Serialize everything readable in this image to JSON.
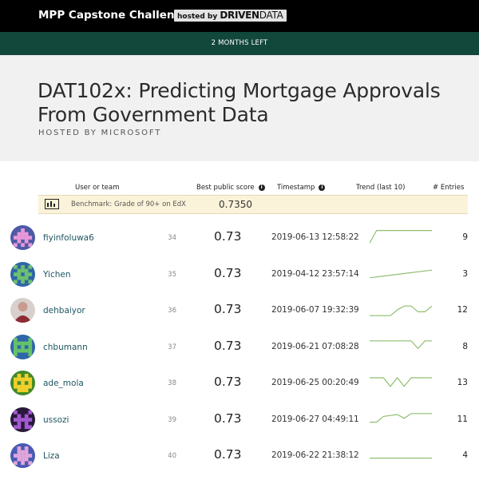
{
  "topbar": {
    "brand": "MPP Capstone Challenge",
    "hosted_prefix": "hosted by ",
    "hosted_bold": "DRIVEN",
    "hosted_light": "DATA"
  },
  "banner": {
    "time_left": "2 MONTHS LEFT"
  },
  "competition": {
    "title": "DAT102x: Predicting Mortgage Approvals From Government Data",
    "hosted_by": "HOSTED BY MICROSOFT"
  },
  "table": {
    "headers": {
      "user": "User or team",
      "score": "Best public score",
      "timestamp": "Timestamp",
      "trend": "Trend (last 10)",
      "entries": "# Entries"
    },
    "benchmark": {
      "label": "Benchmark: Grade of 90+ on EdX",
      "score": "0.7350"
    },
    "rows": [
      {
        "user": "fiyinfoluwa6",
        "rank": "34",
        "score": "0.73",
        "timestamp": "2019-06-13 12:58:22",
        "entries": "9",
        "trend": [
          0.2,
          0.85,
          0.85,
          0.85,
          0.85,
          0.85,
          0.85,
          0.85,
          0.85,
          0.85
        ]
      },
      {
        "user": "Yichen",
        "rank": "35",
        "score": "0.73",
        "timestamp": "2019-04-12 23:57:14",
        "entries": "3",
        "trend": [
          0.3,
          0.5,
          0.7
        ]
      },
      {
        "user": "dehbaiyor",
        "rank": "36",
        "score": "0.73",
        "timestamp": "2019-06-07 19:32:39",
        "entries": "12",
        "trend": [
          0.2,
          0.2,
          0.2,
          0.2,
          0.5,
          0.7,
          0.7,
          0.4,
          0.4,
          0.7
        ]
      },
      {
        "user": "chbumann",
        "rank": "37",
        "score": "0.73",
        "timestamp": "2019-06-21 07:08:28",
        "entries": "8",
        "trend": [
          0.8,
          0.8,
          0.8,
          0.8,
          0.8,
          0.8,
          0.8,
          0.4,
          0.8,
          0.8
        ]
      },
      {
        "user": "ade_mola",
        "rank": "38",
        "score": "0.73",
        "timestamp": "2019-06-25 00:20:49",
        "entries": "13",
        "trend": [
          0.75,
          0.75,
          0.75,
          0.3,
          0.75,
          0.3,
          0.75,
          0.75,
          0.75,
          0.75
        ]
      },
      {
        "user": "ussozi",
        "rank": "39",
        "score": "0.73",
        "timestamp": "2019-06-27 04:49:11",
        "entries": "11",
        "trend": [
          0.35,
          0.35,
          0.65,
          0.7,
          0.75,
          0.55,
          0.8,
          0.8,
          0.8,
          0.8
        ]
      },
      {
        "user": "Liza",
        "rank": "40",
        "score": "0.73",
        "timestamp": "2019-06-22 21:38:12",
        "entries": "4",
        "trend": [
          0.35,
          0.35,
          0.35,
          0.35
        ]
      }
    ]
  },
  "avatars": [
    {
      "icon": "pixel-avatar-icon",
      "bg": "#4e5aa6",
      "fg": "#e998d8",
      "pattern": [
        "00100",
        "01110",
        "11111",
        "01010",
        "10101"
      ]
    },
    {
      "icon": "pixel-avatar-icon",
      "bg": "#2f66a8",
      "fg": "#6fc06f",
      "pattern": [
        "10101",
        "01110",
        "11011",
        "01110",
        "10101"
      ]
    },
    {
      "icon": "photo-avatar-icon",
      "bg": "#d8d0cd",
      "fg": "#8c2b34",
      "pattern": []
    },
    {
      "icon": "pixel-avatar-icon",
      "bg": "#2f66a8",
      "fg": "#66c26a",
      "pattern": [
        "10001",
        "11111",
        "10101",
        "11111",
        "10001"
      ]
    },
    {
      "icon": "pixel-avatar-icon",
      "bg": "#3f8a2a",
      "fg": "#f2d02d",
      "pattern": [
        "01010",
        "11111",
        "10101",
        "11111",
        "01110"
      ]
    },
    {
      "icon": "pixel-avatar-icon",
      "bg": "#2a1a3a",
      "fg": "#a45ad4",
      "pattern": [
        "10001",
        "01010",
        "11111",
        "01010",
        "11011"
      ]
    },
    {
      "icon": "pixel-avatar-icon",
      "bg": "#4a5ab3",
      "fg": "#e2a6dc",
      "pattern": [
        "01010",
        "01110",
        "11111",
        "01110",
        "10101"
      ]
    }
  ],
  "colors": {
    "trend_line": "#8fbf6f",
    "link": "#1d5560",
    "green_bar": "#12473c"
  }
}
